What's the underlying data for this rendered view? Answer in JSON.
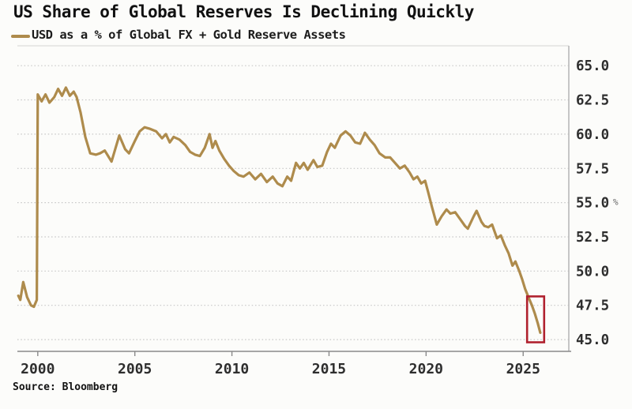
{
  "header": {
    "title": "US Share of Global Reserves Is Declining Quickly",
    "legend": {
      "label": "USD as a % of Global FX + Gold Reserve Assets",
      "swatch_color": "#ae8b4c"
    }
  },
  "footer": {
    "source": "Source: Bloomberg"
  },
  "colors": {
    "line": "#ae8b4c",
    "highlight_box": "#b0212e",
    "grid": "#c6c6c6",
    "axis": "#8a8a8a",
    "spine": "#b9b9b9",
    "top_spine": "#dcdcda",
    "tick_text": "#2e2e2e"
  },
  "chart_data": {
    "type": "line",
    "title": "US Share of Global Reserves Is Declining Quickly",
    "xlabel": "",
    "ylabel": "%",
    "y_unit": "%",
    "grid": "horizontal-dotted",
    "legend_position": "top-left",
    "xlim": [
      1998.95,
      2027.35
    ],
    "ylim": [
      44.14,
      66.45
    ],
    "x_ticks": [
      2000,
      2005,
      2010,
      2015,
      2020,
      2025
    ],
    "x_tick_labels": [
      "2000",
      "2005",
      "2010",
      "2015",
      "2020",
      "2025"
    ],
    "y_ticks": [
      45.0,
      47.5,
      50.0,
      52.5,
      55.0,
      57.5,
      60.0,
      62.5,
      65.0
    ],
    "y_tick_labels": [
      "45.0",
      "47.5",
      "50.0",
      "52.5",
      "55.0",
      "57.5",
      "60.0",
      "62.5",
      "65.0"
    ],
    "series": [
      {
        "name": "USD as a % of Global FX + Gold Reserve Assets",
        "color": "#ae8b4c",
        "points": [
          [
            1999.0,
            48.2
          ],
          [
            1999.1,
            47.9
          ],
          [
            1999.25,
            49.2
          ],
          [
            1999.45,
            48.1
          ],
          [
            1999.65,
            47.5
          ],
          [
            1999.8,
            47.4
          ],
          [
            1999.95,
            47.9
          ],
          [
            2000.0,
            62.9
          ],
          [
            2000.2,
            62.4
          ],
          [
            2000.4,
            62.9
          ],
          [
            2000.6,
            62.3
          ],
          [
            2000.85,
            62.7
          ],
          [
            2001.05,
            63.3
          ],
          [
            2001.25,
            62.8
          ],
          [
            2001.45,
            63.4
          ],
          [
            2001.65,
            62.8
          ],
          [
            2001.85,
            63.1
          ],
          [
            2002.0,
            62.7
          ],
          [
            2002.2,
            61.6
          ],
          [
            2002.45,
            59.8
          ],
          [
            2002.7,
            58.6
          ],
          [
            2003.0,
            58.5
          ],
          [
            2003.2,
            58.6
          ],
          [
            2003.45,
            58.8
          ],
          [
            2003.8,
            58.0
          ],
          [
            2004.2,
            59.9
          ],
          [
            2004.5,
            58.9
          ],
          [
            2004.7,
            58.6
          ],
          [
            2005.0,
            59.5
          ],
          [
            2005.25,
            60.2
          ],
          [
            2005.5,
            60.5
          ],
          [
            2005.75,
            60.4
          ],
          [
            2006.1,
            60.2
          ],
          [
            2006.4,
            59.7
          ],
          [
            2006.6,
            60.0
          ],
          [
            2006.8,
            59.4
          ],
          [
            2007.0,
            59.8
          ],
          [
            2007.3,
            59.6
          ],
          [
            2007.6,
            59.2
          ],
          [
            2007.85,
            58.7
          ],
          [
            2008.1,
            58.5
          ],
          [
            2008.35,
            58.4
          ],
          [
            2008.6,
            59.0
          ],
          [
            2008.85,
            60.0
          ],
          [
            2009.0,
            59.0
          ],
          [
            2009.15,
            59.5
          ],
          [
            2009.35,
            58.8
          ],
          [
            2009.6,
            58.2
          ],
          [
            2009.85,
            57.7
          ],
          [
            2010.1,
            57.3
          ],
          [
            2010.35,
            57.0
          ],
          [
            2010.6,
            56.9
          ],
          [
            2010.9,
            57.2
          ],
          [
            2011.2,
            56.7
          ],
          [
            2011.5,
            57.1
          ],
          [
            2011.8,
            56.5
          ],
          [
            2012.1,
            56.9
          ],
          [
            2012.35,
            56.4
          ],
          [
            2012.6,
            56.2
          ],
          [
            2012.85,
            56.9
          ],
          [
            2013.05,
            56.6
          ],
          [
            2013.3,
            57.9
          ],
          [
            2013.5,
            57.5
          ],
          [
            2013.7,
            57.9
          ],
          [
            2013.9,
            57.4
          ],
          [
            2014.2,
            58.1
          ],
          [
            2014.4,
            57.6
          ],
          [
            2014.65,
            57.7
          ],
          [
            2014.9,
            58.7
          ],
          [
            2015.1,
            59.3
          ],
          [
            2015.3,
            59.0
          ],
          [
            2015.6,
            59.9
          ],
          [
            2015.85,
            60.2
          ],
          [
            2016.1,
            59.9
          ],
          [
            2016.35,
            59.4
          ],
          [
            2016.6,
            59.3
          ],
          [
            2016.85,
            60.1
          ],
          [
            2017.1,
            59.6
          ],
          [
            2017.35,
            59.2
          ],
          [
            2017.6,
            58.6
          ],
          [
            2017.9,
            58.3
          ],
          [
            2018.15,
            58.3
          ],
          [
            2018.4,
            57.9
          ],
          [
            2018.65,
            57.5
          ],
          [
            2018.9,
            57.7
          ],
          [
            2019.15,
            57.2
          ],
          [
            2019.35,
            56.7
          ],
          [
            2019.55,
            56.9
          ],
          [
            2019.75,
            56.4
          ],
          [
            2019.95,
            56.6
          ],
          [
            2020.1,
            55.8
          ],
          [
            2020.3,
            54.7
          ],
          [
            2020.55,
            53.4
          ],
          [
            2020.8,
            54.0
          ],
          [
            2021.05,
            54.5
          ],
          [
            2021.25,
            54.2
          ],
          [
            2021.5,
            54.3
          ],
          [
            2021.75,
            53.8
          ],
          [
            2022.0,
            53.3
          ],
          [
            2022.15,
            53.1
          ],
          [
            2022.45,
            54.0
          ],
          [
            2022.6,
            54.4
          ],
          [
            2022.85,
            53.6
          ],
          [
            2023.0,
            53.3
          ],
          [
            2023.2,
            53.2
          ],
          [
            2023.4,
            53.4
          ],
          [
            2023.65,
            52.4
          ],
          [
            2023.85,
            52.6
          ],
          [
            2024.05,
            51.9
          ],
          [
            2024.25,
            51.3
          ],
          [
            2024.45,
            50.4
          ],
          [
            2024.6,
            50.7
          ],
          [
            2024.8,
            50.0
          ],
          [
            2024.95,
            49.4
          ],
          [
            2025.1,
            48.7
          ],
          [
            2025.3,
            48.0
          ],
          [
            2025.45,
            47.5
          ],
          [
            2025.6,
            46.9
          ],
          [
            2025.75,
            46.2
          ],
          [
            2025.88,
            45.5
          ]
        ]
      }
    ],
    "annotations": [
      {
        "type": "rect",
        "label": "highlight-latest-decline",
        "x0": 2025.2,
        "x1": 2026.08,
        "y0": 44.8,
        "y1": 48.15,
        "color": "#b0212e"
      }
    ]
  }
}
